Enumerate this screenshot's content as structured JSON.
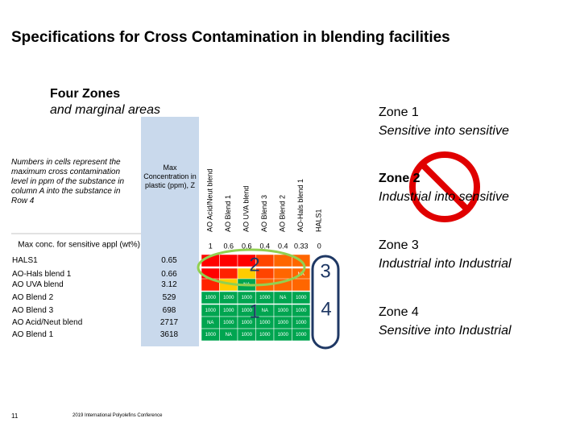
{
  "title": "Specifications for Cross Contamination in blending facilities",
  "subtitle": {
    "line1": "Four Zones",
    "line2": "and marginal areas"
  },
  "table": {
    "note": "Numbers in cells represent the maximum cross contamination level in ppm of the substance in column A into the substance in Row 4",
    "z_header": "Max Concentration in plastic (ppm), Z",
    "columns": [
      "AO Acid/Neut blend",
      "AO Blend 1",
      "AO UVA blend",
      "AO Blend 3",
      "AO Blend 2",
      "AO-Hals blend 1",
      "HALS1"
    ],
    "max_row": {
      "label": "Max conc. for sensitive appl (wt%)",
      "values": [
        1,
        0.6,
        0.6,
        0.4,
        0.4,
        0.33,
        0
      ]
    },
    "rows": [
      {
        "label": "HALS1",
        "z": 0.65,
        "cells": [
          null,
          null,
          null,
          null,
          null,
          null,
          null
        ]
      },
      {
        "label": "AO-Hals blend 1",
        "z": 0.66,
        "cells": [
          null,
          null,
          null,
          null,
          null,
          "NA",
          null
        ]
      },
      {
        "label": "AO UVA blend",
        "z": 3.12,
        "cells": [
          null,
          null,
          "NA",
          null,
          null,
          null,
          null
        ]
      },
      {
        "label": "AO Blend 2",
        "z": 529,
        "cells": [
          1000,
          1000,
          1000,
          1000,
          "NA",
          1000,
          null
        ]
      },
      {
        "label": "AO Blend 3",
        "z": 698,
        "cells": [
          1000,
          1000,
          1000,
          "NA",
          1000,
          1000,
          null
        ]
      },
      {
        "label": "AO Acid/Neut blend",
        "z": 2717,
        "cells": [
          "NA",
          1000,
          1000,
          1000,
          1000,
          1000,
          null
        ]
      },
      {
        "label": "AO Blend 1",
        "z": 3618,
        "cells": [
          1000,
          "NA",
          1000,
          1000,
          1000,
          1000,
          null
        ]
      }
    ]
  },
  "zone_markers": [
    "2",
    "3",
    "1",
    "4"
  ],
  "zones": [
    {
      "name": "Zone 1",
      "description": "Sensitive into sensitive"
    },
    {
      "name": "Zone 2",
      "description": "Industrial into sensitive"
    },
    {
      "name": "Zone 3",
      "description": "Industrial into Industrial"
    },
    {
      "name": "Zone 4",
      "description": "Sensitive into Industrial"
    }
  ],
  "footer": {
    "page": "11",
    "conference": "2019 International Polyolefins Conference"
  }
}
